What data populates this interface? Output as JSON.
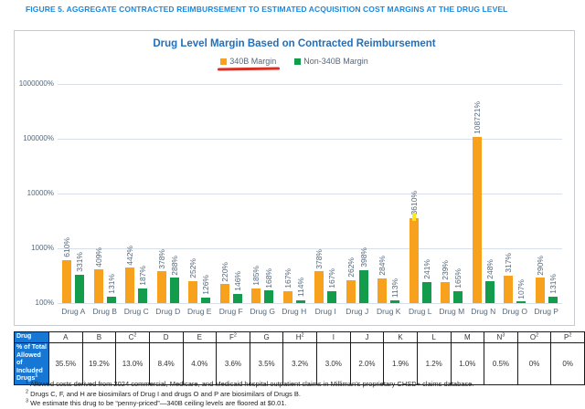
{
  "figure_title": "FIGURE 5. AGGREGATE CONTRACTED REIMBURSEMENT TO ESTIMATED ACQUISITION COST MARGINS AT THE DRUG LEVEL",
  "chart": {
    "title": "Drug Level Margin Based on Contracted Reimbursement",
    "legend": [
      {
        "label": "340B Margin",
        "color": "#F7A11C",
        "underline": true
      },
      {
        "label": "Non-340B Margin",
        "color": "#129C4B",
        "underline": false
      }
    ],
    "annotation_color": "#D93025"
  },
  "chart_data": {
    "type": "bar",
    "scale": "log",
    "title": "Drug Level Margin Based on Contracted Reimbursement",
    "xlabel": "",
    "ylabel": "",
    "grid": true,
    "legend_position": "top",
    "categories": [
      "Drug A",
      "Drug B",
      "Drug C",
      "Drug D",
      "Drug E",
      "Drug F",
      "Drug G",
      "Drug H",
      "Drug I",
      "Drug J",
      "Drug K",
      "Drug L",
      "Drug M",
      "Drug N",
      "Drug O",
      "Drug P"
    ],
    "series": [
      {
        "name": "340B Margin",
        "color": "#F7A11C",
        "values": [
          610,
          409,
          442,
          378,
          252,
          220,
          185,
          167,
          378,
          262,
          284,
          3610,
          239,
          108721,
          317,
          290
        ]
      },
      {
        "name": "Non-340B Margin",
        "color": "#129C4B",
        "values": [
          331,
          131,
          187,
          288,
          126,
          146,
          168,
          114,
          167,
          398,
          113,
          241,
          165,
          248,
          107,
          131
        ]
      }
    ],
    "value_suffix": "%",
    "y_ticks": [
      "100%",
      "1000%",
      "10000%",
      "100000%",
      "1000000%"
    ],
    "ylim_log": [
      100,
      1000000
    ],
    "highlight": {
      "category_index": 11,
      "series_index": 0,
      "color": "#FFE815"
    }
  },
  "table": {
    "corner_label": "Drug",
    "row_label": {
      "text": "% of Total Allowed of Included Drugs",
      "sup": "1"
    },
    "columns": [
      {
        "letter": "A",
        "sup": ""
      },
      {
        "letter": "B",
        "sup": ""
      },
      {
        "letter": "C",
        "sup": "2"
      },
      {
        "letter": "D",
        "sup": ""
      },
      {
        "letter": "E",
        "sup": ""
      },
      {
        "letter": "F",
        "sup": "2"
      },
      {
        "letter": "G",
        "sup": ""
      },
      {
        "letter": "H",
        "sup": "2"
      },
      {
        "letter": "I",
        "sup": ""
      },
      {
        "letter": "J",
        "sup": ""
      },
      {
        "letter": "K",
        "sup": ""
      },
      {
        "letter": "L",
        "sup": ""
      },
      {
        "letter": "M",
        "sup": ""
      },
      {
        "letter": "N",
        "sup": "3"
      },
      {
        "letter": "O",
        "sup": "2"
      },
      {
        "letter": "P",
        "sup": "2"
      }
    ],
    "values": [
      "35.5%",
      "19.2%",
      "13.0%",
      "8.4%",
      "4.0%",
      "3.6%",
      "3.5%",
      "3.2%",
      "3.0%",
      "2.0%",
      "1.9%",
      "1.2%",
      "1.0%",
      "0.5%",
      "0%",
      "0%"
    ],
    "header_bg": "#1777D4"
  },
  "footnotes": [
    {
      "sup": "1",
      "text": "Allowed costs derived from 2024 commercial, Medicare, and Medicaid hospital outpatient claims in Milliman’s proprietary CHSD+ claims database."
    },
    {
      "sup": "2",
      "text": "Drugs C, F, and H are biosimilars of Drug I and drugs O and P are biosimilars of Drugs B."
    },
    {
      "sup": "3",
      "text": "We estimate this drug to be “penny-priced”—340B ceiling levels are floored at $0.01."
    }
  ]
}
